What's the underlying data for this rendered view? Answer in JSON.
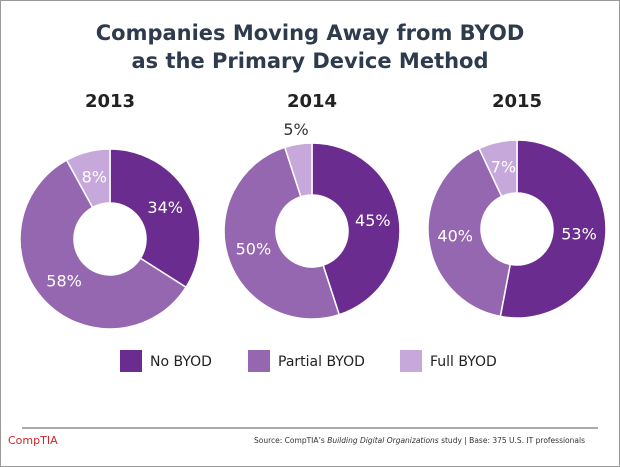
{
  "title": [
    "Companies Moving Away from BYOD",
    "as the Primary Device Method"
  ],
  "logo": "CompTIA",
  "source": [
    "Source: CompTIA’s ",
    "Building Digital Organizations",
    " study | Base: 375 U.S. IT professionals"
  ],
  "chart_data": [
    {
      "type": "pie",
      "title": "2013",
      "categories": [
        "No BYOD",
        "Partial BYOD",
        "Full BYOD"
      ],
      "values": [
        34,
        58,
        8
      ],
      "value_labels": [
        "34%",
        "58%",
        "8%"
      ],
      "colors": [
        "#6a2d8f",
        "#9567b1",
        "#c6a8da"
      ]
    },
    {
      "type": "pie",
      "title": "2014",
      "categories": [
        "No BYOD",
        "Partial BYOD",
        "Full BYOD"
      ],
      "values": [
        45,
        50,
        5
      ],
      "value_labels": [
        "45%",
        "50%",
        "5%"
      ],
      "colors": [
        "#6a2d8f",
        "#9567b1",
        "#c6a8da"
      ]
    },
    {
      "type": "pie",
      "title": "2015",
      "categories": [
        "No BYOD",
        "Partial BYOD",
        "Full BYOD"
      ],
      "values": [
        53,
        40,
        7
      ],
      "value_labels": [
        "53%",
        "40%",
        "7%"
      ],
      "colors": [
        "#6a2d8f",
        "#9567b1",
        "#c6a8da"
      ]
    }
  ]
}
